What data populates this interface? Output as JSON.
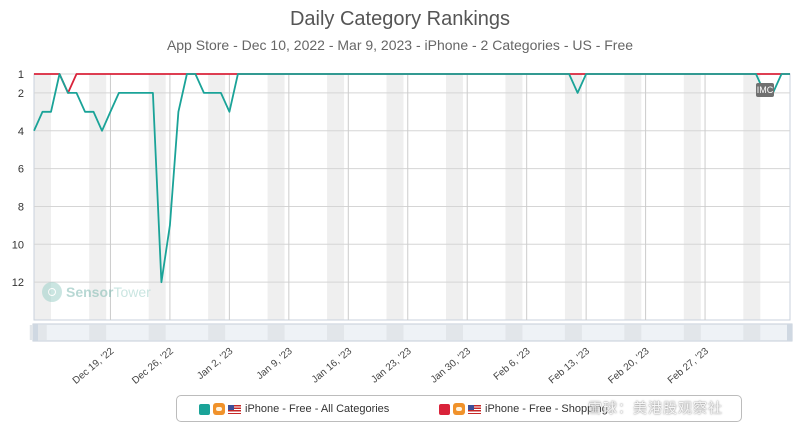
{
  "header": {
    "title": "Daily Category Rankings",
    "subtitle": "App Store - Dec 10, 2022 - Mar 9, 2023 - iPhone - 2 Categories - US - Free"
  },
  "legend": {
    "items": [
      {
        "label": "iPhone - Free - All Categories",
        "color": "#1aa398"
      },
      {
        "label": "iPhone - Free - Shopping",
        "color": "#d9233a"
      }
    ]
  },
  "watermark": {
    "part1": "Sensor",
    "part2": "Tower"
  },
  "badge": {
    "label": "IMC"
  },
  "overlay_watermark": {
    "text": "雪球：美港股观察社"
  },
  "chart_data": {
    "type": "line",
    "title": "Daily Category Rankings",
    "subtitle": "App Store - Dec 10, 2022 - Mar 9, 2023 - iPhone - 2 Categories - US - Free",
    "xlabel": "",
    "ylabel": "",
    "x_start": "Dec 10, 2022",
    "y_reversed": true,
    "ylim": [
      1,
      14
    ],
    "y_ticks": [
      1,
      2,
      4,
      6,
      8,
      10,
      12
    ],
    "x_tick_labels": [
      "Dec 19, '22",
      "Dec 26, '22",
      "Jan 2, '23",
      "Jan 9, '23",
      "Jan 16, '23",
      "Jan 23, '23",
      "Jan 30, '23",
      "Feb 6, '23",
      "Feb 13, '23",
      "Feb 20, '23",
      "Feb 27, '23"
    ],
    "grid": true,
    "legend_position": "bottom",
    "series": [
      {
        "name": "iPhone - Free - All Categories",
        "color": "#1aa398",
        "values": [
          4,
          3,
          3,
          1,
          2,
          2,
          3,
          3,
          4,
          3,
          2,
          2,
          2,
          2,
          2,
          12,
          9,
          3,
          1,
          1,
          2,
          2,
          2,
          3,
          1,
          1,
          1,
          1,
          1,
          1,
          1,
          1,
          1,
          1,
          1,
          1,
          1,
          1,
          1,
          1,
          1,
          1,
          1,
          1,
          1,
          1,
          1,
          1,
          1,
          1,
          1,
          1,
          1,
          1,
          1,
          1,
          1,
          1,
          1,
          1,
          1,
          1,
          1,
          1,
          2,
          1,
          1,
          1,
          1,
          1,
          1,
          1,
          1,
          1,
          1,
          1,
          1,
          1,
          1,
          1,
          1,
          1,
          1,
          1,
          1,
          1,
          2,
          2,
          1,
          1
        ]
      },
      {
        "name": "iPhone - Free - Shopping",
        "color": "#d9233a",
        "values": [
          1,
          1,
          1,
          1,
          2,
          1,
          1,
          1,
          1,
          1,
          1,
          1,
          1,
          1,
          1,
          1,
          1,
          1,
          1,
          1,
          1,
          1,
          1,
          1,
          1,
          1,
          1,
          1,
          1,
          1,
          1,
          1,
          1,
          1,
          1,
          1,
          1,
          1,
          1,
          1,
          1,
          1,
          1,
          1,
          1,
          1,
          1,
          1,
          1,
          1,
          1,
          1,
          1,
          1,
          1,
          1,
          1,
          1,
          1,
          1,
          1,
          1,
          1,
          1,
          1,
          1,
          1,
          1,
          1,
          1,
          1,
          1,
          1,
          1,
          1,
          1,
          1,
          1,
          1,
          1,
          1,
          1,
          1,
          1,
          1,
          1,
          1,
          1,
          1,
          1
        ]
      }
    ]
  }
}
